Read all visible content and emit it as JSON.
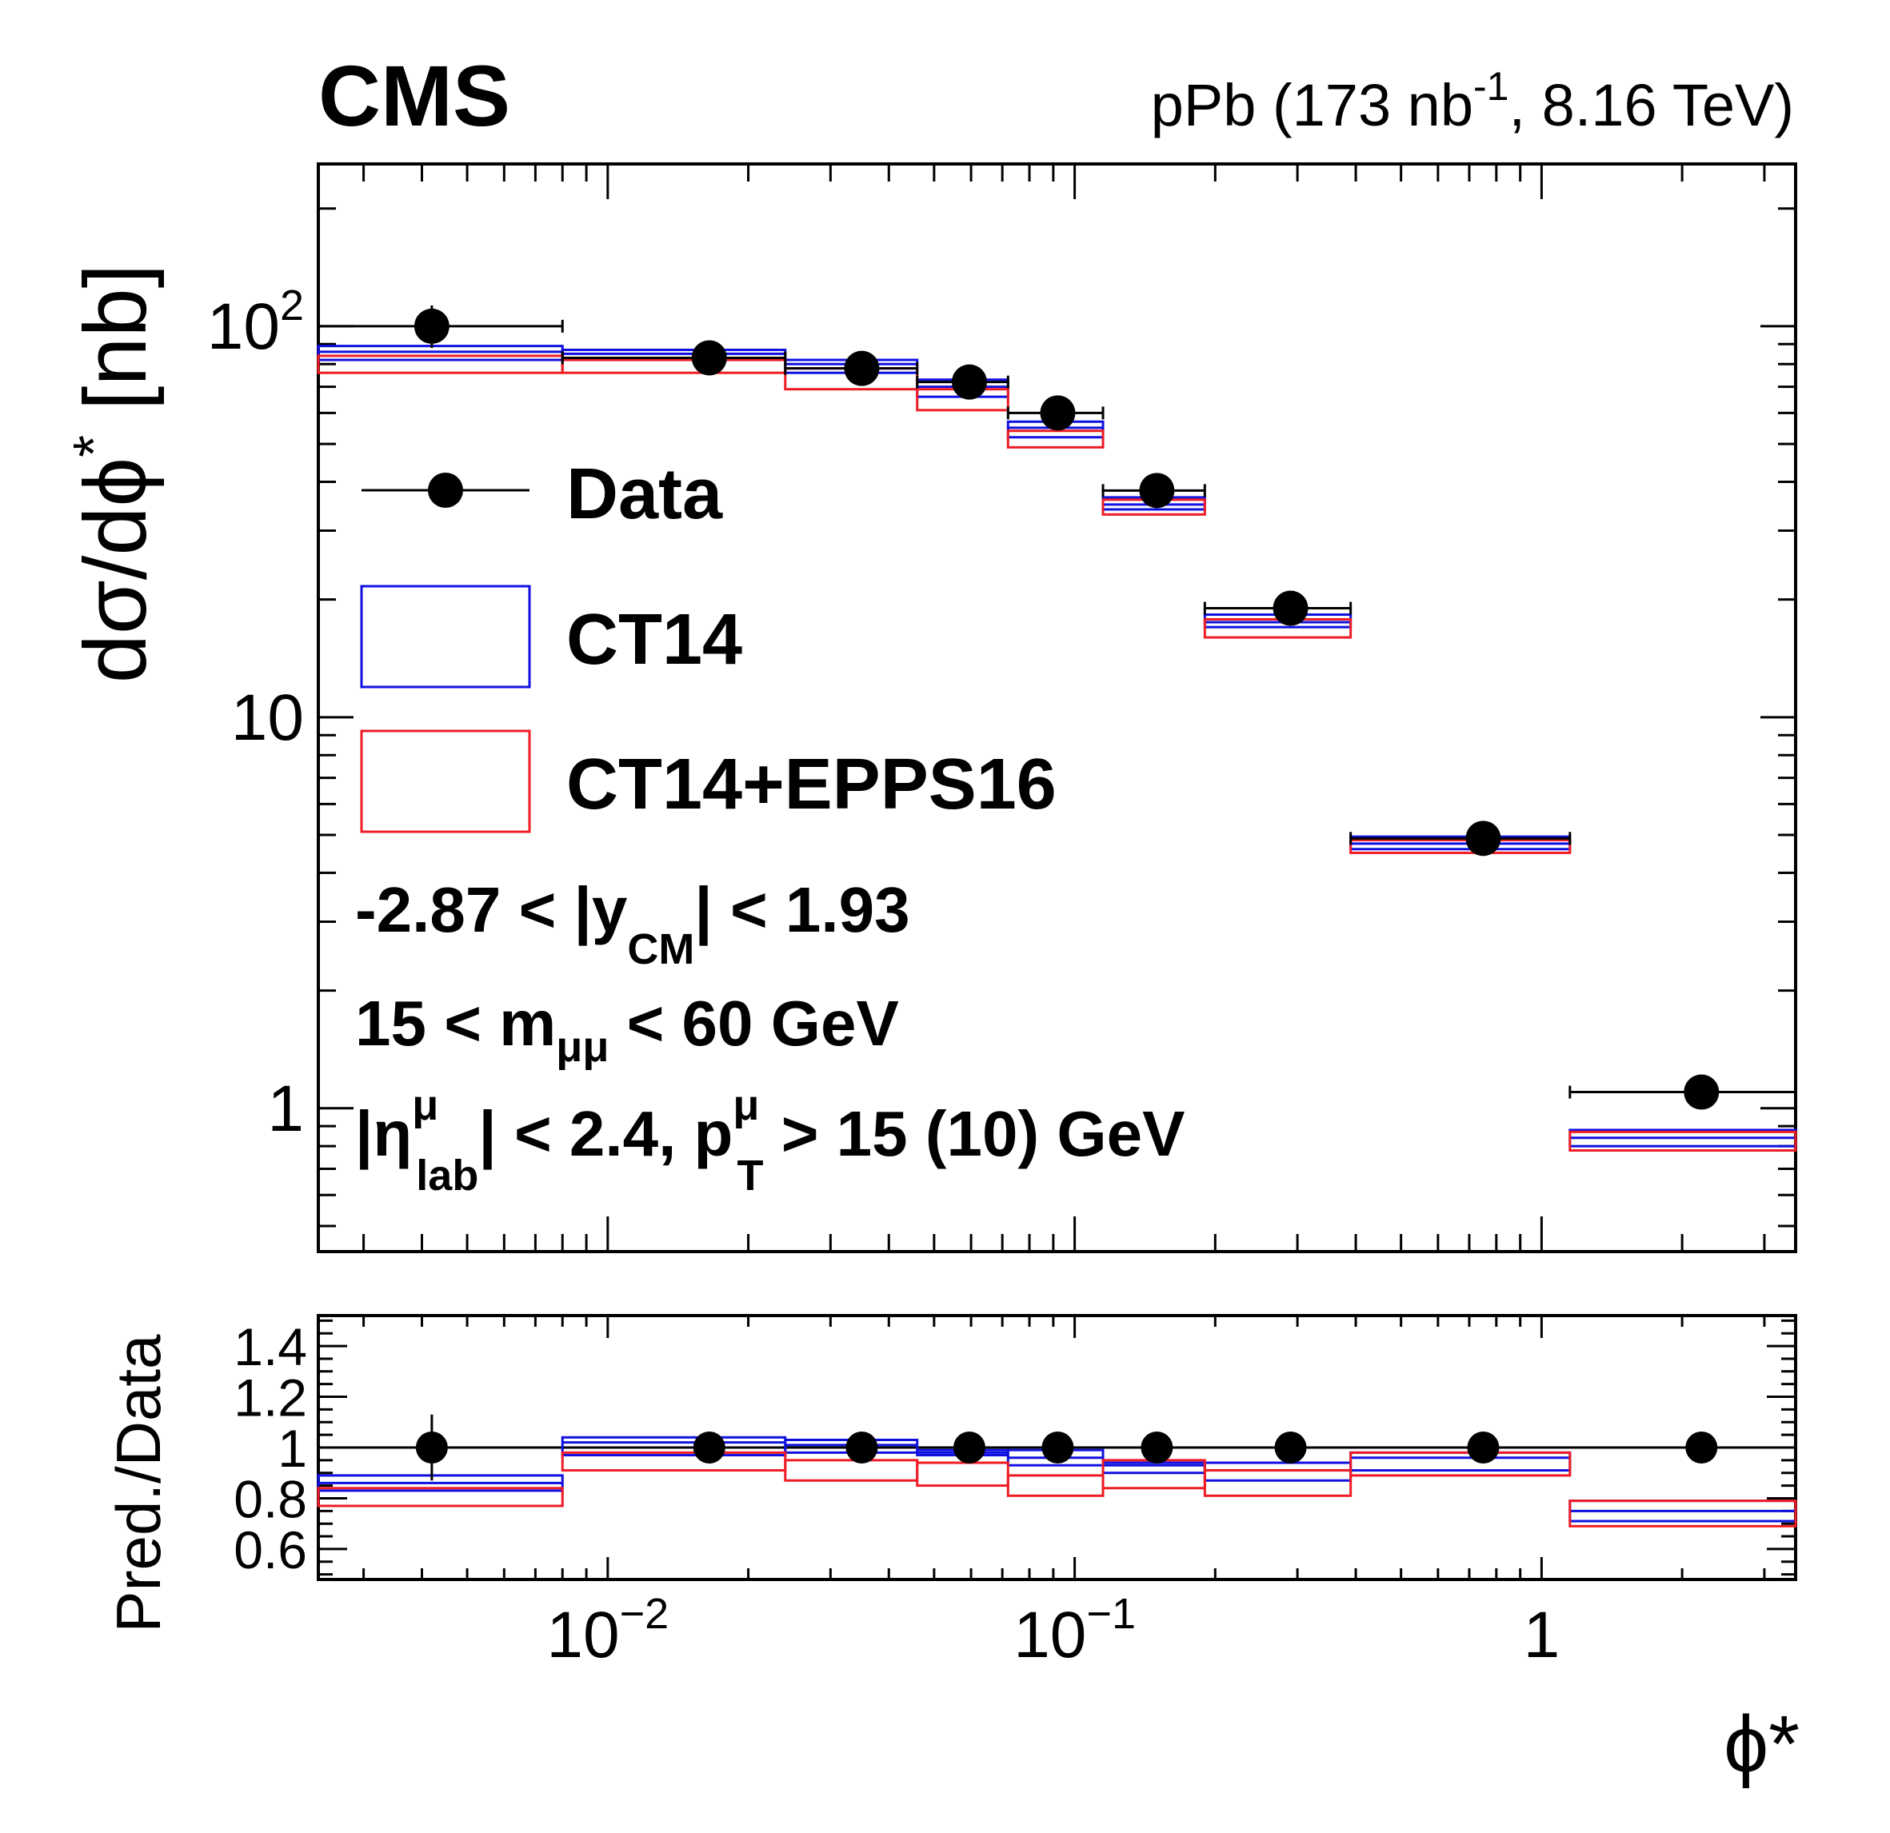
{
  "header": {
    "experiment": "CMS",
    "lumi_prefix": "pPb (173 nb",
    "lumi_exp": "-1",
    "lumi_suffix": ", 8.16 TeV)"
  },
  "colors": {
    "data": "#000000",
    "ct14": "#1010e0",
    "epps16": "#ee1c24"
  },
  "chart_data": [
    {
      "type": "scatter",
      "panel": "main",
      "xlabel": "ϕ*",
      "ylabel": "dσ/dϕ* [nb]",
      "ylabel_main": "dσ/dϕ",
      "ylabel_sup": "*",
      "ylabel_unit": " [nb]",
      "x_scale": "log",
      "y_scale": "log",
      "xlim": [
        0.0024,
        3.5
      ],
      "ylim": [
        0.43,
        260
      ],
      "y_ticks": [
        {
          "value": 100,
          "base": "10",
          "exp": "2"
        },
        {
          "value": 10,
          "base": "10",
          "exp": ""
        },
        {
          "value": 1,
          "base": "1",
          "exp": ""
        }
      ],
      "bins": [
        [
          0.0024,
          0.008
        ],
        [
          0.008,
          0.024
        ],
        [
          0.024,
          0.046
        ],
        [
          0.046,
          0.072
        ],
        [
          0.072,
          0.115
        ],
        [
          0.115,
          0.19
        ],
        [
          0.19,
          0.39
        ],
        [
          0.39,
          1.15
        ],
        [
          1.15,
          3.5
        ]
      ],
      "series": [
        {
          "name": "Data",
          "x": [
            0.0042,
            0.0165,
            0.035,
            0.0595,
            0.092,
            0.15,
            0.29,
            0.75,
            2.2
          ],
          "y": [
            100,
            83,
            78,
            72,
            60,
            38,
            19,
            4.9,
            1.1
          ],
          "err_hi": [
            113,
            86,
            81,
            75,
            62,
            39.5,
            19.6,
            5.05,
            1.12
          ],
          "err_lo": [
            88,
            80,
            75,
            69,
            58,
            36.5,
            18.4,
            4.75,
            1.08
          ]
        },
        {
          "name": "CT14",
          "lo": [
            82,
            82,
            76,
            66,
            52,
            34,
            17,
            4.6,
            0.8
          ],
          "hi": [
            89,
            87,
            82,
            73,
            57,
            36.5,
            18.3,
            4.95,
            0.88
          ],
          "central": [
            86,
            85,
            80,
            70,
            55,
            35,
            17.5,
            4.75,
            0.84
          ]
        },
        {
          "name": "CT14+EPPS16",
          "lo": [
            76,
            76,
            69,
            61,
            49,
            33,
            16,
            4.5,
            0.78
          ],
          "hi": [
            84,
            82,
            78,
            69,
            54,
            36,
            17.8,
            4.85,
            0.87
          ]
        }
      ],
      "legend": {
        "placement": "top-left",
        "entries": [
          "Data",
          "CT14",
          "CT14+EPPS16"
        ]
      },
      "annotations": {
        "y_cut_pre": "-2.87 < |y",
        "y_cut_sub": "CM",
        "y_cut_post": "| < 1.93",
        "m_cut_pre": "15 < m",
        "m_cut_sub": "μμ",
        "m_cut_post": " < 60 GeV",
        "eta_pre": "|η",
        "eta_sup": "μ",
        "eta_sub": "lab",
        "eta_mid": "| < 2.4, p",
        "pt_sup": "μ",
        "pt_sub": "T",
        "pt_post": " > 15 (10) GeV"
      }
    },
    {
      "type": "scatter",
      "panel": "ratio",
      "ylabel": "Pred./Data",
      "xlabel": "ϕ*",
      "x_scale": "log",
      "xlim": [
        0.0024,
        3.5
      ],
      "ylim": [
        0.48,
        1.52
      ],
      "y_ticks": [
        "0.6",
        "0.8",
        "1",
        "1.2",
        "1.4"
      ],
      "x_ticks": [
        {
          "value": 0.01,
          "base": "10",
          "exp": "−2"
        },
        {
          "value": 0.1,
          "base": "10",
          "exp": "−1"
        },
        {
          "value": 1,
          "base": "1",
          "exp": ""
        }
      ],
      "series": [
        {
          "name": "Data",
          "x": [
            0.0042,
            0.0165,
            0.035,
            0.0595,
            0.092,
            0.15,
            0.29,
            0.75,
            2.2
          ],
          "y": [
            1,
            1,
            1,
            1,
            1,
            1,
            1,
            1,
            1
          ],
          "err": [
            0.13,
            0.04,
            0.05,
            0.04,
            0.04,
            0.02,
            0.02,
            0.04,
            0.04
          ]
        },
        {
          "name": "CT14",
          "lo": [
            0.83,
            0.97,
            0.98,
            0.97,
            0.93,
            0.9,
            0.87,
            0.91,
            0.71
          ],
          "hi": [
            0.89,
            1.04,
            1.03,
            0.99,
            0.99,
            0.94,
            0.94,
            0.98,
            0.79
          ],
          "central": [
            0.86,
            1.02,
            1.01,
            0.98,
            0.96,
            0.93,
            0.91,
            0.96,
            0.75
          ]
        },
        {
          "name": "CT14+EPPS16",
          "lo": [
            0.77,
            0.91,
            0.87,
            0.85,
            0.81,
            0.84,
            0.81,
            0.89,
            0.69
          ],
          "hi": [
            0.84,
            0.98,
            0.95,
            0.94,
            0.89,
            0.95,
            0.91,
            0.98,
            0.79
          ]
        }
      ]
    }
  ]
}
